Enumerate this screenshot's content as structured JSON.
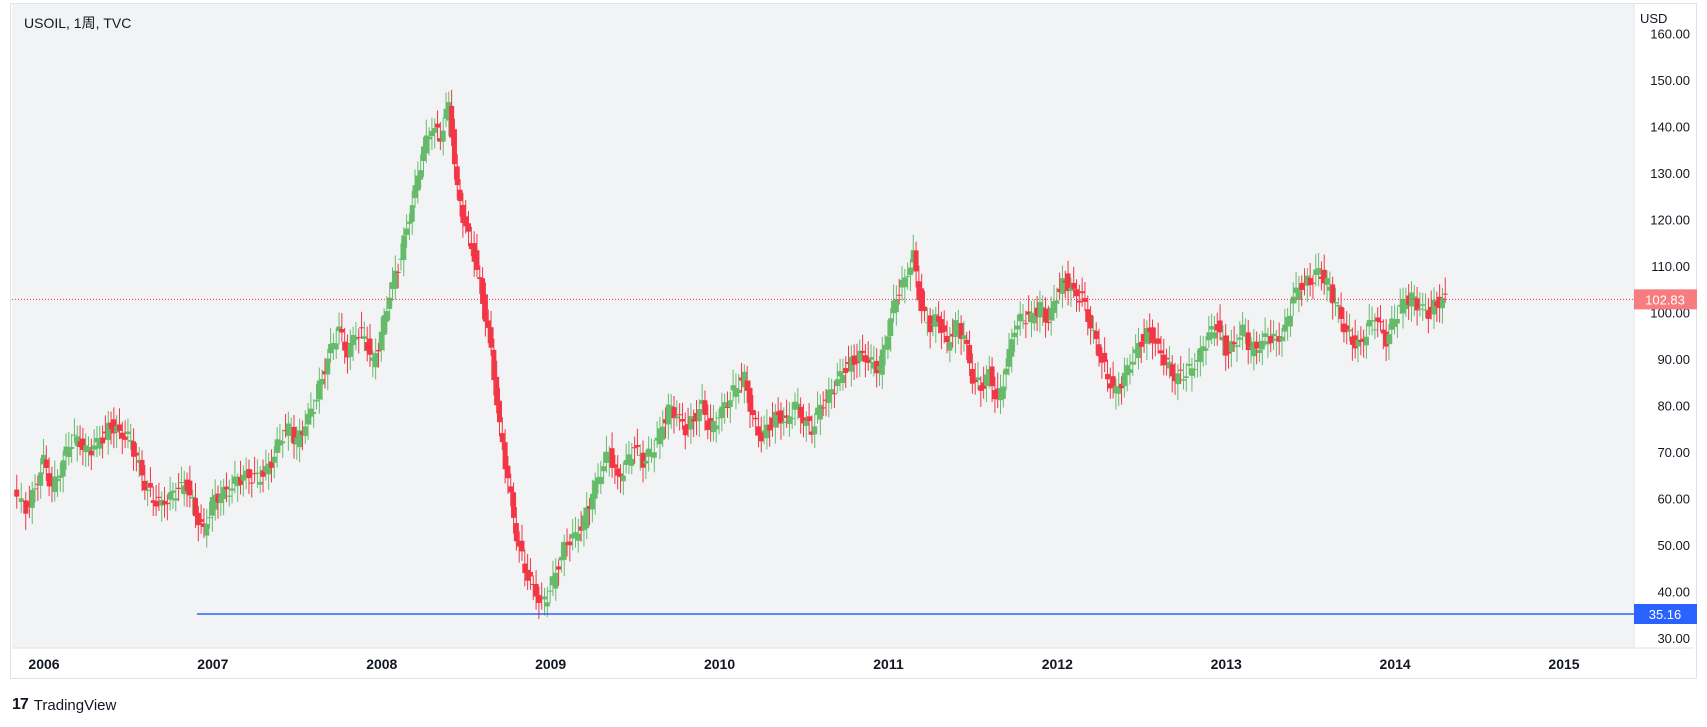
{
  "header": {
    "symbol": "USOIL, 1周, TVC",
    "currency": "USD"
  },
  "brand": {
    "logo_glyph": "17",
    "name": "TradingView"
  },
  "colors": {
    "up": "#26a69a",
    "up_light": "#66bb6a",
    "down": "#f23645",
    "line": "#2962ff",
    "price_bg": "#f77c80",
    "level_bg": "#2962ff"
  },
  "chart_data": {
    "type": "candlestick",
    "title": "USOIL, 1周, TVC",
    "xlabel": "",
    "ylabel": "USD",
    "x_ticks": [
      "2006",
      "2007",
      "2008",
      "2009",
      "2010",
      "2011",
      "2012",
      "2013",
      "2014",
      "2015"
    ],
    "y_ticks": [
      "30.00",
      "40.00",
      "50.00",
      "60.00",
      "70.00",
      "80.00",
      "90.00",
      "100.00",
      "110.00",
      "120.00",
      "130.00",
      "140.00",
      "150.00",
      "160.00"
    ],
    "xlim": [
      2006.0,
      2015.0
    ],
    "ylim": [
      30,
      160
    ],
    "last_price": {
      "value": 102.83,
      "label": "102.83"
    },
    "horizontal_line": {
      "value": 35.16,
      "label": "35.16",
      "start": 2007.0
    },
    "series": [
      {
        "name": "USOIL",
        "points": [
          [
            2005.92,
            61
          ],
          [
            2006.0,
            58
          ],
          [
            2006.05,
            62
          ],
          [
            2006.1,
            68
          ],
          [
            2006.15,
            62
          ],
          [
            2006.2,
            66
          ],
          [
            2006.25,
            72
          ],
          [
            2006.3,
            73
          ],
          [
            2006.35,
            70
          ],
          [
            2006.4,
            71
          ],
          [
            2006.45,
            73
          ],
          [
            2006.5,
            76
          ],
          [
            2006.55,
            74
          ],
          [
            2006.6,
            73
          ],
          [
            2006.65,
            69
          ],
          [
            2006.7,
            63
          ],
          [
            2006.75,
            60
          ],
          [
            2006.8,
            59
          ],
          [
            2006.85,
            60
          ],
          [
            2006.9,
            62
          ],
          [
            2006.95,
            63
          ],
          [
            2007.0,
            57
          ],
          [
            2007.05,
            53
          ],
          [
            2007.1,
            59
          ],
          [
            2007.15,
            61
          ],
          [
            2007.2,
            62
          ],
          [
            2007.25,
            64
          ],
          [
            2007.3,
            65
          ],
          [
            2007.35,
            64
          ],
          [
            2007.4,
            65
          ],
          [
            2007.45,
            68
          ],
          [
            2007.5,
            73
          ],
          [
            2007.55,
            75
          ],
          [
            2007.6,
            72
          ],
          [
            2007.65,
            76
          ],
          [
            2007.7,
            80
          ],
          [
            2007.75,
            86
          ],
          [
            2007.8,
            92
          ],
          [
            2007.85,
            96
          ],
          [
            2007.9,
            91
          ],
          [
            2007.95,
            96
          ],
          [
            2008.0,
            95
          ],
          [
            2008.05,
            89
          ],
          [
            2008.1,
            95
          ],
          [
            2008.15,
            104
          ],
          [
            2008.2,
            110
          ],
          [
            2008.25,
            118
          ],
          [
            2008.3,
            126
          ],
          [
            2008.35,
            135
          ],
          [
            2008.4,
            140
          ],
          [
            2008.45,
            138
          ],
          [
            2008.5,
            145
          ],
          [
            2008.55,
            126
          ],
          [
            2008.6,
            118
          ],
          [
            2008.65,
            112
          ],
          [
            2008.7,
            103
          ],
          [
            2008.75,
            92
          ],
          [
            2008.8,
            75
          ],
          [
            2008.85,
            64
          ],
          [
            2008.9,
            52
          ],
          [
            2008.95,
            45
          ],
          [
            2009.0,
            41
          ],
          [
            2009.05,
            37
          ],
          [
            2009.1,
            40
          ],
          [
            2009.15,
            46
          ],
          [
            2009.2,
            51
          ],
          [
            2009.25,
            52
          ],
          [
            2009.3,
            55
          ],
          [
            2009.35,
            61
          ],
          [
            2009.4,
            66
          ],
          [
            2009.45,
            70
          ],
          [
            2009.5,
            64
          ],
          [
            2009.55,
            67
          ],
          [
            2009.6,
            71
          ],
          [
            2009.65,
            68
          ],
          [
            2009.7,
            70
          ],
          [
            2009.75,
            74
          ],
          [
            2009.8,
            79
          ],
          [
            2009.85,
            78
          ],
          [
            2009.9,
            75
          ],
          [
            2009.95,
            77
          ],
          [
            2010.0,
            80
          ],
          [
            2010.05,
            74
          ],
          [
            2010.1,
            78
          ],
          [
            2010.15,
            81
          ],
          [
            2010.2,
            84
          ],
          [
            2010.25,
            86
          ],
          [
            2010.3,
            77
          ],
          [
            2010.35,
            73
          ],
          [
            2010.4,
            76
          ],
          [
            2010.45,
            78
          ],
          [
            2010.5,
            76
          ],
          [
            2010.55,
            80
          ],
          [
            2010.6,
            77
          ],
          [
            2010.65,
            75
          ],
          [
            2010.7,
            80
          ],
          [
            2010.75,
            82
          ],
          [
            2010.8,
            85
          ],
          [
            2010.85,
            88
          ],
          [
            2010.9,
            90
          ],
          [
            2010.95,
            91
          ],
          [
            2011.0,
            89
          ],
          [
            2011.05,
            88
          ],
          [
            2011.1,
            96
          ],
          [
            2011.15,
            104
          ],
          [
            2011.2,
            107
          ],
          [
            2011.25,
            112
          ],
          [
            2011.3,
            100
          ],
          [
            2011.35,
            97
          ],
          [
            2011.4,
            99
          ],
          [
            2011.45,
            93
          ],
          [
            2011.5,
            97
          ],
          [
            2011.55,
            95
          ],
          [
            2011.6,
            86
          ],
          [
            2011.65,
            84
          ],
          [
            2011.7,
            87
          ],
          [
            2011.75,
            80
          ],
          [
            2011.8,
            88
          ],
          [
            2011.85,
            97
          ],
          [
            2011.9,
            99
          ],
          [
            2011.95,
            99
          ],
          [
            2012.0,
            101
          ],
          [
            2012.05,
            98
          ],
          [
            2012.1,
            104
          ],
          [
            2012.15,
            107
          ],
          [
            2012.2,
            104
          ],
          [
            2012.25,
            103
          ],
          [
            2012.3,
            97
          ],
          [
            2012.35,
            92
          ],
          [
            2012.4,
            86
          ],
          [
            2012.45,
            83
          ],
          [
            2012.5,
            86
          ],
          [
            2012.55,
            90
          ],
          [
            2012.6,
            94
          ],
          [
            2012.65,
            96
          ],
          [
            2012.7,
            92
          ],
          [
            2012.75,
            89
          ],
          [
            2012.8,
            86
          ],
          [
            2012.85,
            87
          ],
          [
            2012.9,
            88
          ],
          [
            2012.95,
            91
          ],
          [
            2013.0,
            95
          ],
          [
            2013.05,
            97
          ],
          [
            2013.1,
            92
          ],
          [
            2013.15,
            93
          ],
          [
            2013.2,
            96
          ],
          [
            2013.25,
            92
          ],
          [
            2013.3,
            93
          ],
          [
            2013.35,
            95
          ],
          [
            2013.4,
            94
          ],
          [
            2013.45,
            96
          ],
          [
            2013.5,
            103
          ],
          [
            2013.55,
            106
          ],
          [
            2013.6,
            107
          ],
          [
            2013.65,
            109
          ],
          [
            2013.7,
            106
          ],
          [
            2013.75,
            102
          ],
          [
            2013.8,
            97
          ],
          [
            2013.85,
            94
          ],
          [
            2013.9,
            93
          ],
          [
            2013.95,
            97
          ],
          [
            2014.0,
            98
          ],
          [
            2014.05,
            94
          ],
          [
            2014.1,
            99
          ],
          [
            2014.15,
            102
          ],
          [
            2014.2,
            103
          ],
          [
            2014.25,
            101
          ],
          [
            2014.3,
            100
          ],
          [
            2014.35,
            102
          ],
          [
            2014.4,
            103
          ]
        ]
      }
    ]
  }
}
